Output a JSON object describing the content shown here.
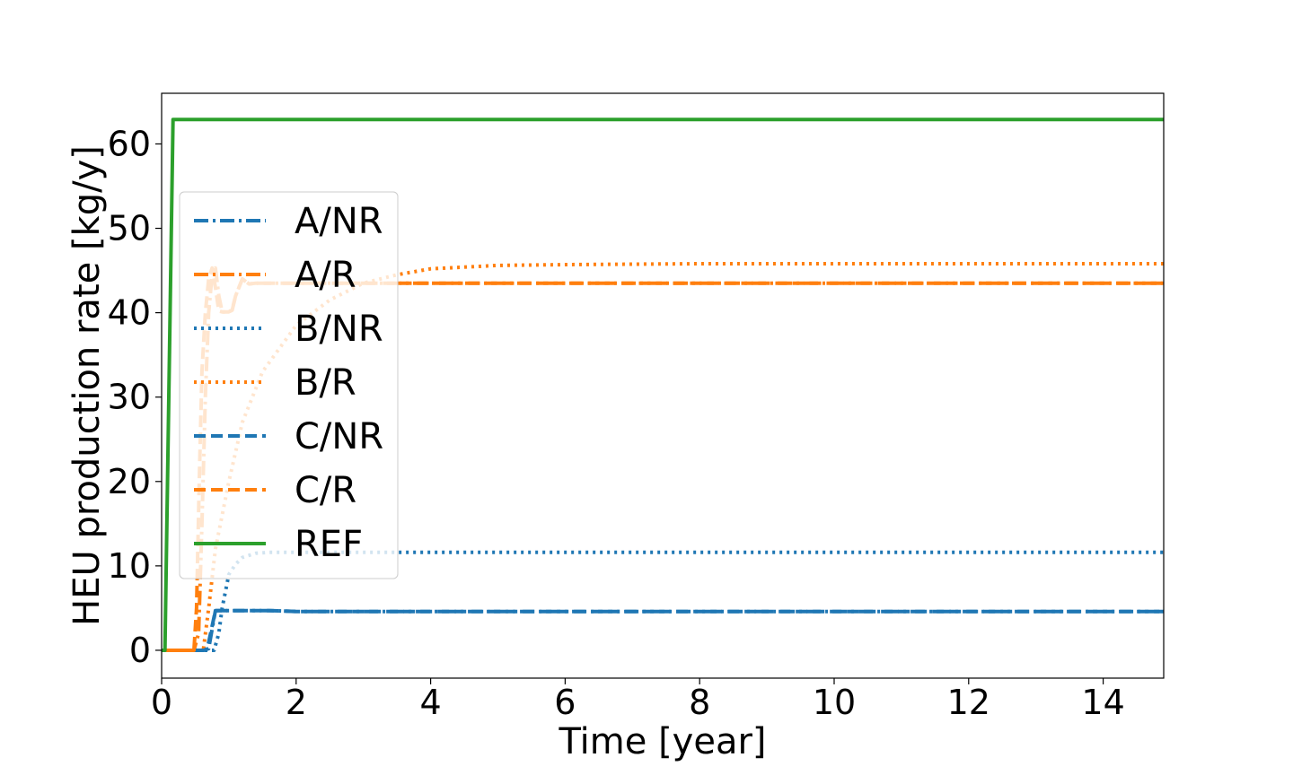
{
  "chart_data": {
    "type": "line",
    "title": "",
    "xlabel": "Time [year]",
    "ylabel": "HEU production rate [kg/y]",
    "xlim": [
      0,
      14.9
    ],
    "ylim": [
      -3.3,
      66
    ],
    "xticks": [
      0,
      2,
      4,
      6,
      8,
      10,
      12,
      14
    ],
    "yticks": [
      0,
      10,
      20,
      30,
      40,
      50,
      60
    ],
    "grid": false,
    "legend": "center-left",
    "series": [
      {
        "name": "A/NR",
        "color": "#1f77b4",
        "dash": "dashdot",
        "x": [
          0,
          0.63,
          0.7,
          0.8,
          1.0,
          1.6,
          2.0,
          14.9
        ],
        "y": [
          0,
          0,
          0.2,
          4.7,
          4.7,
          4.7,
          4.6,
          4.6
        ]
      },
      {
        "name": "A/R",
        "color": "#ff7f0e",
        "dash": "dashdot",
        "x": [
          0,
          0.48,
          0.55,
          0.6,
          0.65,
          0.7,
          0.75,
          0.8,
          0.85,
          0.9,
          1.0,
          1.05,
          1.1,
          1.2,
          1.3,
          1.4,
          1.5,
          14.9
        ],
        "y": [
          0,
          0,
          2,
          15,
          30,
          40,
          44.5,
          45.3,
          42,
          40.1,
          40.1,
          40.3,
          42,
          44,
          43.4,
          43.5,
          43.5,
          43.5
        ]
      },
      {
        "name": "B/NR",
        "color": "#1f77b4",
        "dash": "dot",
        "x": [
          0,
          0.78,
          0.85,
          0.9,
          1.0,
          1.1,
          1.2,
          1.4,
          1.6,
          2.0,
          14.9
        ],
        "y": [
          0,
          0,
          2,
          5,
          9,
          10.2,
          11,
          11.5,
          11.6,
          11.6,
          11.6
        ]
      },
      {
        "name": "B/R",
        "color": "#ff7f0e",
        "dash": "dot",
        "x": [
          0,
          0.62,
          0.7,
          0.8,
          1.0,
          1.2,
          1.5,
          2.0,
          2.5,
          3.0,
          3.5,
          4.0,
          5.0,
          6.0,
          8.0,
          10.0,
          14.9
        ],
        "y": [
          0,
          0,
          5,
          12,
          20,
          27,
          33,
          38.5,
          41.5,
          43.5,
          44.5,
          45.2,
          45.6,
          45.7,
          45.8,
          45.8,
          45.8
        ]
      },
      {
        "name": "C/NR",
        "color": "#1f77b4",
        "dash": "dashed",
        "x": [
          0,
          0.63,
          0.68,
          0.8,
          1.0,
          1.6,
          2.0,
          14.9
        ],
        "y": [
          0,
          0,
          0.2,
          4.7,
          4.7,
          4.7,
          4.6,
          4.6
        ]
      },
      {
        "name": "C/R",
        "color": "#ff7f0e",
        "dash": "dashed",
        "x": [
          0,
          0.48,
          0.52,
          0.56,
          0.6,
          0.65,
          0.7,
          0.75,
          0.8,
          0.85,
          0.9,
          1.0,
          1.05,
          1.1,
          1.2,
          1.3,
          1.4,
          1.5,
          14.9
        ],
        "y": [
          0,
          0,
          5,
          20,
          33,
          40,
          44,
          45.3,
          43,
          40.2,
          40.1,
          40.1,
          40.4,
          42,
          44,
          43.4,
          43.5,
          43.5,
          43.5
        ]
      },
      {
        "name": "REF",
        "color": "#2ca02c",
        "dash": "solid",
        "x": [
          0,
          0.05,
          0.17,
          0.3,
          14.9
        ],
        "y": [
          0,
          0,
          62.9,
          62.9,
          62.9
        ]
      }
    ]
  }
}
